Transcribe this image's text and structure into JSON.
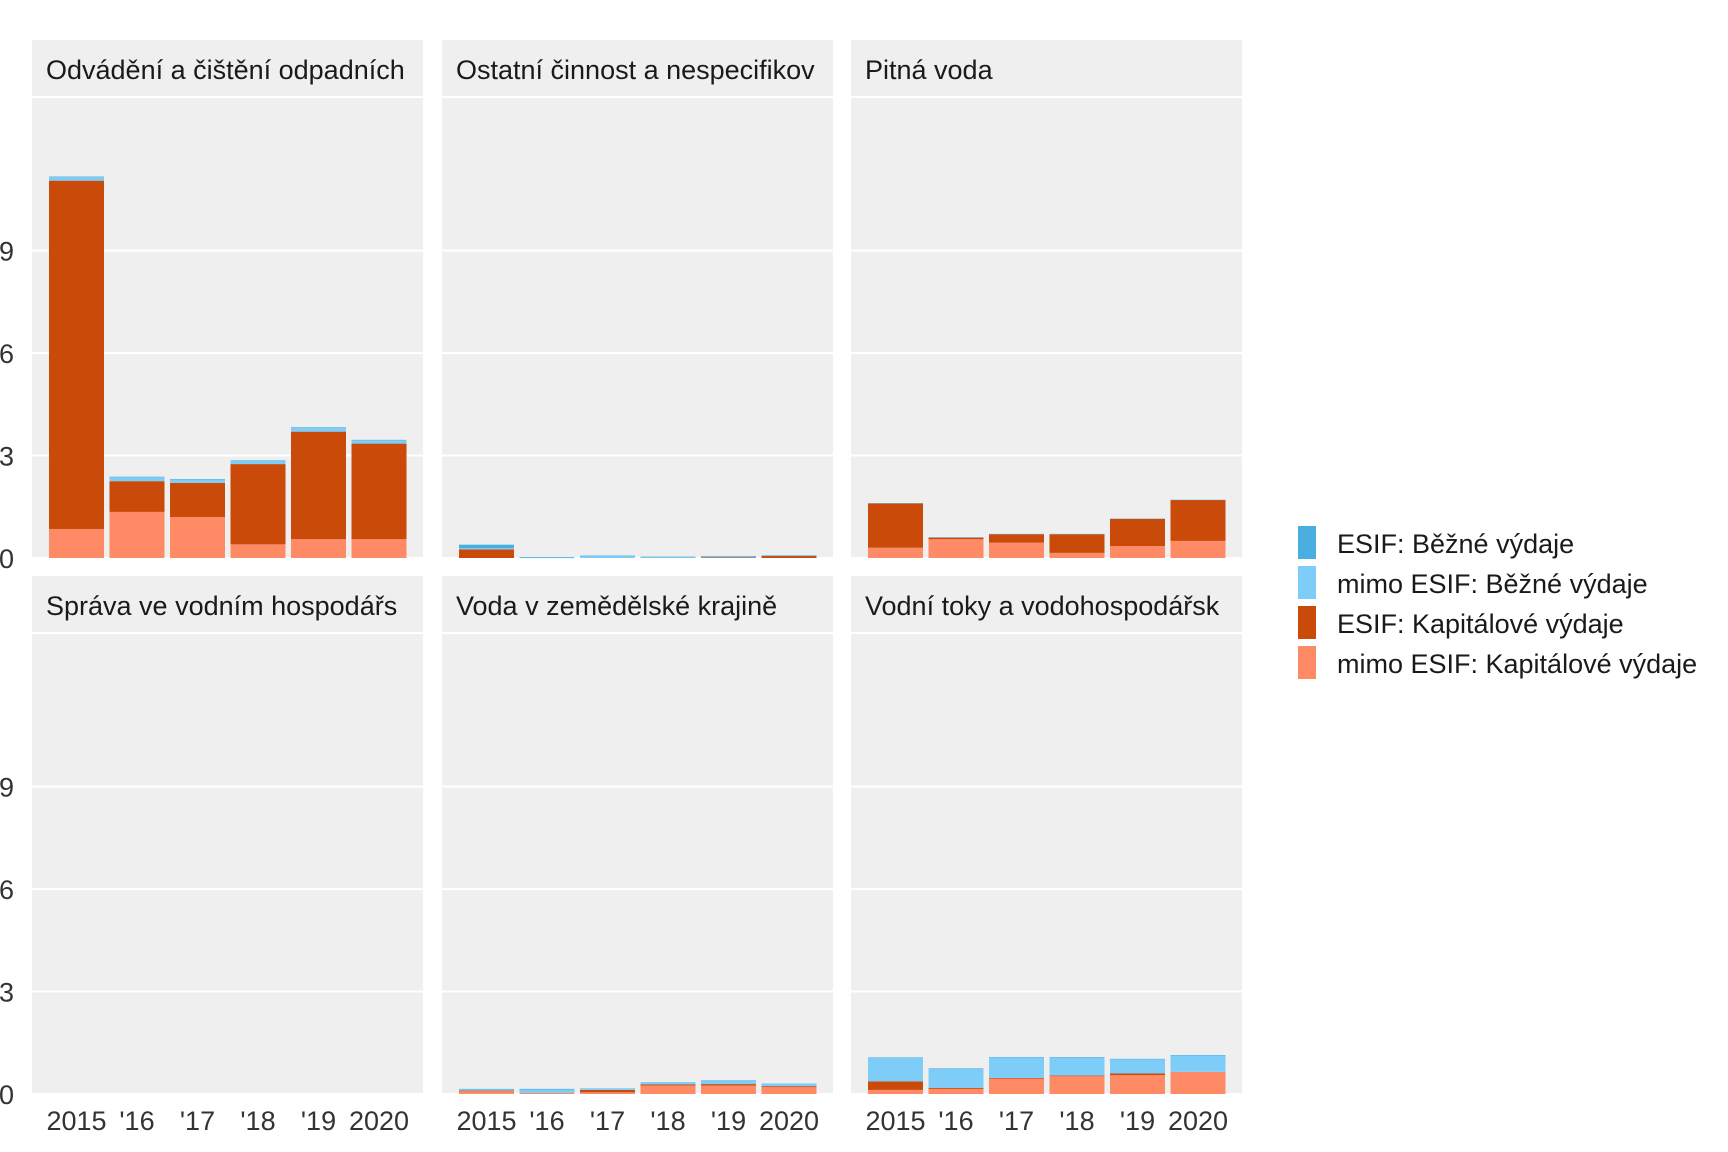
{
  "chart_data": {
    "type": "bar",
    "stacked": true,
    "facets": [
      "Odvádění a čištění odpadních",
      "Ostatní činnost a nespecifikov",
      "Pitná voda",
      "Správa ve vodním hospodářs",
      "Voda v zemědělské krajině",
      "Vodní toky a vodohospodářsk"
    ],
    "categories": [
      "2015",
      "'16",
      "'17",
      "'18",
      "'19",
      "2020"
    ],
    "yticks": [
      "0",
      "3",
      "6",
      "9"
    ],
    "ylim": [
      0,
      13.5
    ],
    "grid": true,
    "legend_position": "right",
    "series": [
      {
        "name": "mimo ESIF: Kapitálové výdaje",
        "color": "#ff8a66",
        "values": [
          [
            0.85,
            1.35,
            1.2,
            0.4,
            0.55,
            0.55
          ],
          [
            0,
            0,
            0,
            0,
            0,
            0
          ],
          [
            0.3,
            0.55,
            0.45,
            0.15,
            0.35,
            0.5
          ],
          [
            0,
            0,
            0,
            0,
            0,
            0
          ],
          [
            0.08,
            0.03,
            0.05,
            0.25,
            0.25,
            0.2
          ],
          [
            0.12,
            0.15,
            0.45,
            0.52,
            0.55,
            0.65
          ]
        ]
      },
      {
        "name": "ESIF: Kapitálové výdaje",
        "color": "#c94a09",
        "values": [
          [
            10.2,
            0.9,
            1.0,
            2.35,
            3.15,
            2.8
          ],
          [
            0.25,
            0,
            0,
            0,
            0.02,
            0.06
          ],
          [
            1.3,
            0.05,
            0.25,
            0.55,
            0.8,
            1.2
          ],
          [
            0,
            0,
            0,
            0,
            0,
            0
          ],
          [
            0.02,
            0,
            0.07,
            0.03,
            0.04,
            0.03
          ],
          [
            0.25,
            0.03,
            0.02,
            0.02,
            0.05,
            0
          ]
        ]
      },
      {
        "name": "mimo ESIF: Běžné výdaje",
        "color": "#7dcdf8",
        "values": [
          [
            0.1,
            0.12,
            0.1,
            0.1,
            0.12,
            0.1
          ],
          [
            0.04,
            0.01,
            0.06,
            0.02,
            0.03,
            0.01
          ],
          [
            0.01,
            0.01,
            0.01,
            0.01,
            0.01,
            0.01
          ],
          [
            0,
            0,
            0,
            0,
            0,
            0
          ],
          [
            0.04,
            0.1,
            0.05,
            0.07,
            0.1,
            0.08
          ],
          [
            0.68,
            0.55,
            0.6,
            0.52,
            0.42,
            0.48
          ]
        ]
      },
      {
        "name": "ESIF: Běžné výdaje",
        "color": "#4aaee0",
        "values": [
          [
            0.02,
            0.01,
            0.01,
            0.01,
            0.01,
            0.01
          ],
          [
            0.1,
            0.02,
            0.01,
            0.02,
            0.01,
            0.01
          ],
          [
            0,
            0,
            0,
            0,
            0,
            0
          ],
          [
            0,
            0,
            0,
            0,
            0,
            0
          ],
          [
            0.01,
            0.02,
            0,
            0,
            0.01,
            0
          ],
          [
            0.02,
            0.02,
            0.01,
            0.02,
            0.01,
            0.01
          ]
        ]
      }
    ],
    "legend_order": [
      "ESIF: Běžné výdaje",
      "mimo ESIF: Běžné výdaje",
      "ESIF: Kapitálové výdaje",
      "mimo ESIF: Kapitálové výdaje"
    ]
  }
}
